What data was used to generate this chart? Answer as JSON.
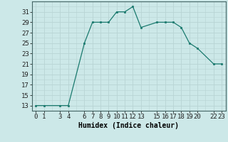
{
  "x": [
    0,
    1,
    3,
    4,
    6,
    7,
    8,
    9,
    10,
    11,
    12,
    13,
    15,
    16,
    17,
    18,
    19,
    20,
    22,
    23
  ],
  "y": [
    13,
    13,
    13,
    13,
    25,
    29,
    29,
    29,
    31,
    31,
    32,
    28,
    29,
    29,
    29,
    28,
    25,
    24,
    21,
    21
  ],
  "xlim": [
    -0.5,
    23.5
  ],
  "ylim": [
    12,
    33
  ],
  "xticks": [
    0,
    1,
    3,
    4,
    6,
    7,
    8,
    9,
    10,
    11,
    12,
    13,
    15,
    16,
    17,
    18,
    19,
    20,
    22,
    23
  ],
  "yticks": [
    13,
    15,
    17,
    19,
    21,
    23,
    25,
    27,
    29,
    31
  ],
  "xlabel": "Humidex (Indice chaleur)",
  "line_color": "#1a7a6e",
  "marker_color": "#1a7a6e",
  "bg_color": "#cce8e8",
  "grid_color": "#b8d4d4",
  "xlabel_fontsize": 7,
  "tick_fontsize": 6.5
}
